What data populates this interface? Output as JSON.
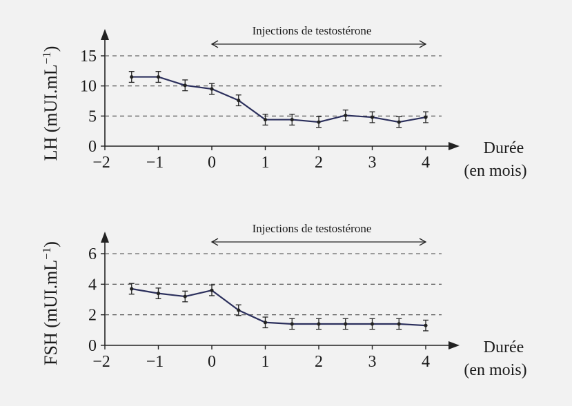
{
  "colors": {
    "line": "#2b2f5c",
    "ink": "#222222",
    "background": "#f2f2f2"
  },
  "chart_data": [
    {
      "type": "line",
      "ylabel_main": "LH (mUI.mL",
      "ylabel_sup": "−1",
      "ylabel_close": ")",
      "xlabel_line1": "Durée",
      "xlabel_line2": "(en mois)",
      "xlim": [
        -2,
        4
      ],
      "ylim": [
        0,
        15
      ],
      "x_ticks": [
        -2,
        -1,
        0,
        1,
        2,
        3,
        4
      ],
      "x_tick_labels": [
        "−2",
        "−1",
        "0",
        "1",
        "2",
        "3",
        "4"
      ],
      "y_ticks": [
        0,
        5,
        10,
        15
      ],
      "y_tick_labels": [
        "0",
        "5",
        "10",
        "15"
      ],
      "gridlines_y": [
        5,
        10,
        15
      ],
      "annotation": {
        "text": "Injections de testostérone",
        "x_start": 0,
        "x_end": 4
      },
      "series": [
        {
          "x": [
            -1.5,
            -1,
            -0.5,
            0,
            0.5,
            1,
            1.5,
            2,
            2.5,
            3,
            3.5,
            4
          ],
          "y": [
            11.5,
            11.5,
            10.1,
            9.5,
            7.6,
            4.4,
            4.4,
            4.0,
            5.1,
            4.8,
            4.0,
            4.8
          ],
          "error": [
            0.9,
            0.9,
            0.9,
            0.9,
            0.9,
            0.9,
            0.9,
            0.9,
            0.9,
            0.9,
            0.9,
            0.9
          ]
        }
      ]
    },
    {
      "type": "line",
      "ylabel_main": "FSH (mUI.mL",
      "ylabel_sup": "−1",
      "ylabel_close": ")",
      "xlabel_line1": "Durée",
      "xlabel_line2": "(en mois)",
      "xlim": [
        -2,
        4
      ],
      "ylim": [
        0,
        6
      ],
      "x_ticks": [
        -2,
        -1,
        0,
        1,
        2,
        3,
        4
      ],
      "x_tick_labels": [
        "−2",
        "−1",
        "0",
        "1",
        "2",
        "3",
        "4"
      ],
      "y_ticks": [
        0,
        2,
        4,
        6
      ],
      "y_tick_labels": [
        "0",
        "2",
        "4",
        "6"
      ],
      "gridlines_y": [
        2,
        4,
        6
      ],
      "annotation": {
        "text": "Injections de testostérone",
        "x_start": 0,
        "x_end": 4
      },
      "series": [
        {
          "x": [
            -1.5,
            -1,
            -0.5,
            0,
            0.5,
            1,
            1.5,
            2,
            2.5,
            3,
            3.5,
            4
          ],
          "y": [
            3.7,
            3.4,
            3.2,
            3.6,
            2.3,
            1.5,
            1.4,
            1.4,
            1.4,
            1.4,
            1.4,
            1.3
          ],
          "error": [
            0.35,
            0.35,
            0.35,
            0.35,
            0.35,
            0.35,
            0.35,
            0.35,
            0.35,
            0.35,
            0.35,
            0.35
          ]
        }
      ]
    }
  ]
}
